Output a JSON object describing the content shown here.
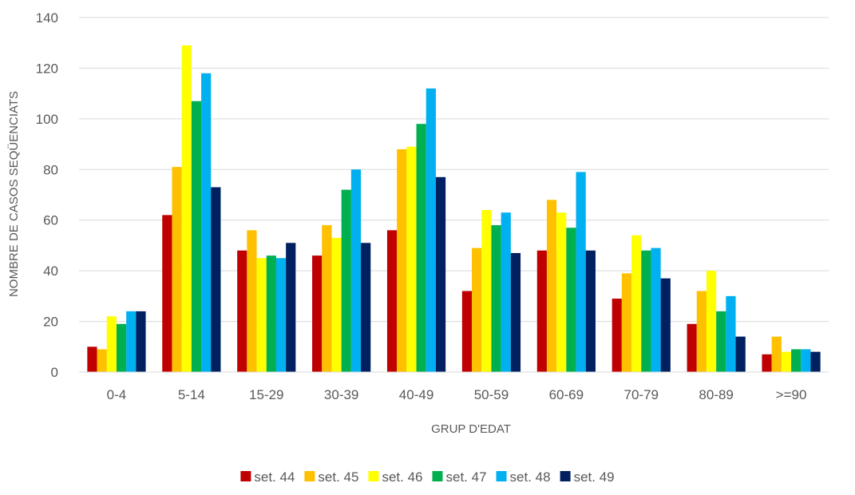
{
  "chart_data": {
    "type": "bar",
    "title": "",
    "xlabel": "GRUP D'EDAT",
    "ylabel": "NOMBRE DE CASOS SEQÜENCIATS",
    "ylim": [
      0,
      140
    ],
    "yticks": [
      0,
      20,
      40,
      60,
      80,
      100,
      120,
      140
    ],
    "grid": true,
    "legend_position": "bottom",
    "categories": [
      "0-4",
      "5-14",
      "15-29",
      "30-39",
      "40-49",
      "50-59",
      "60-69",
      "70-79",
      "80-89",
      ">=90"
    ],
    "series": [
      {
        "name": "set. 44",
        "color": "#C00000",
        "values": [
          10,
          62,
          48,
          46,
          56,
          32,
          48,
          29,
          19,
          7
        ]
      },
      {
        "name": "set. 45",
        "color": "#FFC000",
        "values": [
          9,
          81,
          56,
          58,
          88,
          49,
          68,
          39,
          32,
          14
        ]
      },
      {
        "name": "set. 46",
        "color": "#FFFF00",
        "values": [
          22,
          129,
          45,
          53,
          89,
          64,
          63,
          54,
          40,
          8
        ]
      },
      {
        "name": "set. 47",
        "color": "#00B050",
        "values": [
          19,
          107,
          46,
          72,
          98,
          58,
          57,
          48,
          24,
          9
        ]
      },
      {
        "name": "set. 48",
        "color": "#00B0F0",
        "values": [
          24,
          118,
          45,
          80,
          112,
          63,
          79,
          49,
          30,
          9
        ]
      },
      {
        "name": "set. 49",
        "color": "#002060",
        "values": [
          24,
          73,
          51,
          51,
          77,
          47,
          48,
          37,
          14,
          8
        ]
      }
    ]
  }
}
